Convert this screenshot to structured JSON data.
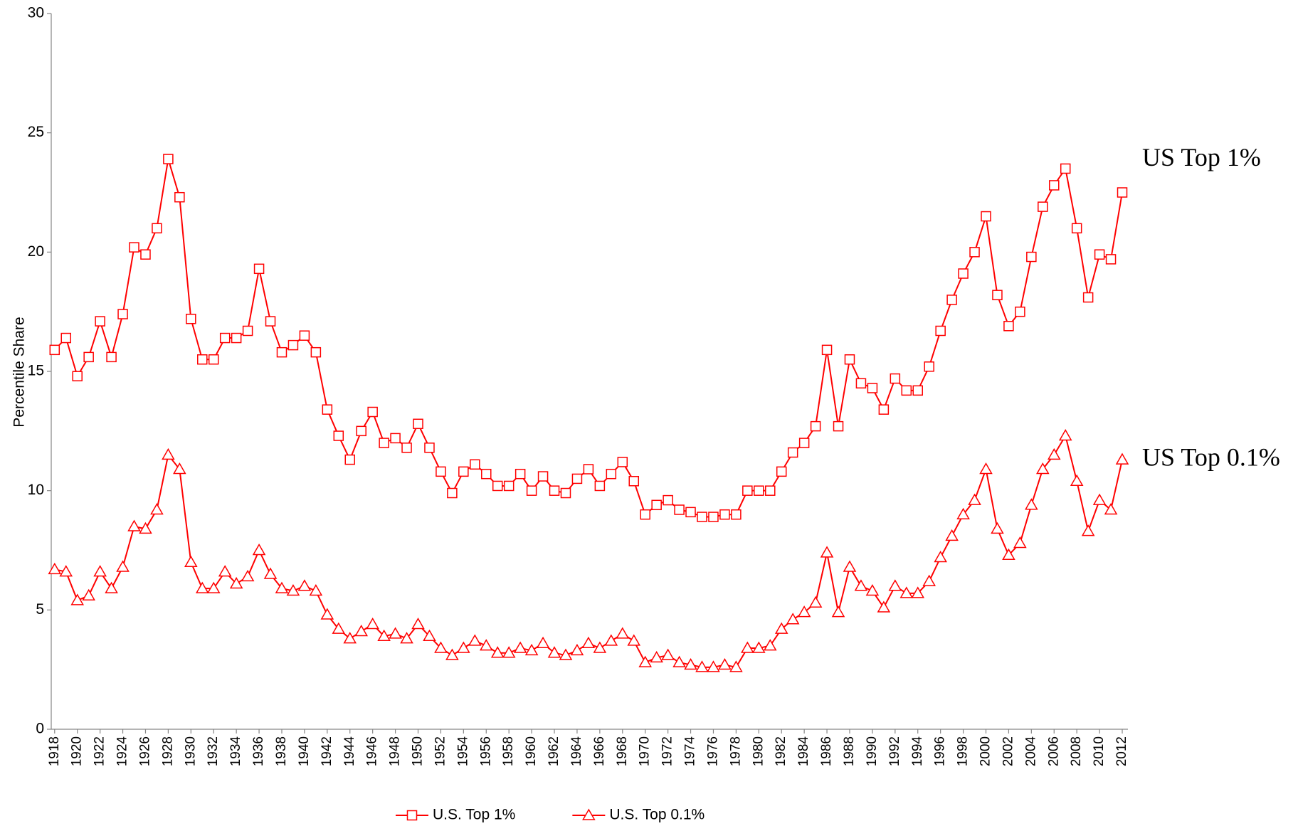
{
  "chart_data": {
    "type": "line",
    "ylabel": "Percentile Share",
    "x": [
      1918,
      1919,
      1920,
      1921,
      1922,
      1923,
      1924,
      1925,
      1926,
      1927,
      1928,
      1929,
      1930,
      1931,
      1932,
      1933,
      1934,
      1935,
      1936,
      1937,
      1938,
      1939,
      1940,
      1941,
      1942,
      1943,
      1944,
      1945,
      1946,
      1947,
      1948,
      1949,
      1950,
      1951,
      1952,
      1953,
      1954,
      1955,
      1956,
      1957,
      1958,
      1959,
      1960,
      1961,
      1962,
      1963,
      1964,
      1965,
      1966,
      1967,
      1968,
      1969,
      1970,
      1971,
      1972,
      1973,
      1974,
      1975,
      1976,
      1977,
      1978,
      1979,
      1980,
      1981,
      1982,
      1983,
      1984,
      1985,
      1986,
      1987,
      1988,
      1989,
      1990,
      1991,
      1992,
      1993,
      1994,
      1995,
      1996,
      1997,
      1998,
      1999,
      2000,
      2001,
      2002,
      2003,
      2004,
      2005,
      2006,
      2007,
      2008,
      2009,
      2010,
      2011,
      2012
    ],
    "series": [
      {
        "name": "U.S. Top 1%",
        "color": "#ff0000",
        "marker": "square",
        "values": [
          15.9,
          16.4,
          14.8,
          15.6,
          17.1,
          15.6,
          17.4,
          20.2,
          19.9,
          21.0,
          23.9,
          22.3,
          17.2,
          15.5,
          15.5,
          16.4,
          16.4,
          16.7,
          19.3,
          17.1,
          15.8,
          16.1,
          16.5,
          15.8,
          13.4,
          12.3,
          11.3,
          12.5,
          13.3,
          12.0,
          12.2,
          11.8,
          12.8,
          11.8,
          10.8,
          9.9,
          10.8,
          11.1,
          10.7,
          10.2,
          10.2,
          10.7,
          10.0,
          10.6,
          10.0,
          9.9,
          10.5,
          10.9,
          10.2,
          10.7,
          11.2,
          10.4,
          9.0,
          9.4,
          9.6,
          9.2,
          9.1,
          8.9,
          8.9,
          9.0,
          9.0,
          10.0,
          10.0,
          10.0,
          10.8,
          11.6,
          12.0,
          12.7,
          15.9,
          12.7,
          15.5,
          14.5,
          14.3,
          13.4,
          14.7,
          14.2,
          14.2,
          15.2,
          16.7,
          18.0,
          19.1,
          20.0,
          21.5,
          18.2,
          16.9,
          17.5,
          19.8,
          21.9,
          22.8,
          23.5,
          21.0,
          18.1,
          19.9,
          19.7,
          22.5
        ]
      },
      {
        "name": "U.S. Top 0.1%",
        "color": "#ff0000",
        "marker": "triangle",
        "values": [
          6.7,
          6.6,
          5.4,
          5.6,
          6.6,
          5.9,
          6.8,
          8.5,
          8.4,
          9.2,
          11.5,
          10.9,
          7.0,
          5.9,
          5.9,
          6.6,
          6.1,
          6.4,
          7.5,
          6.5,
          5.9,
          5.8,
          6.0,
          5.8,
          4.8,
          4.2,
          3.8,
          4.1,
          4.4,
          3.9,
          4.0,
          3.8,
          4.4,
          3.9,
          3.4,
          3.1,
          3.4,
          3.7,
          3.5,
          3.2,
          3.2,
          3.4,
          3.3,
          3.6,
          3.2,
          3.1,
          3.3,
          3.6,
          3.4,
          3.7,
          4.0,
          3.7,
          2.8,
          3.0,
          3.1,
          2.8,
          2.7,
          2.6,
          2.6,
          2.7,
          2.6,
          3.4,
          3.4,
          3.5,
          4.2,
          4.6,
          4.9,
          5.3,
          7.4,
          4.9,
          6.8,
          6.0,
          5.8,
          5.1,
          6.0,
          5.7,
          5.7,
          6.2,
          7.2,
          8.1,
          9.0,
          9.6,
          10.9,
          8.4,
          7.3,
          7.8,
          9.4,
          10.9,
          11.5,
          12.3,
          10.4,
          8.3,
          9.6,
          9.2,
          11.3
        ]
      }
    ],
    "annotations": [
      {
        "text": "US Top 1%",
        "series": 0
      },
      {
        "text": "US Top 0.1%",
        "series": 1
      }
    ],
    "xlim": [
      1917.7,
      2012.5
    ],
    "xticks": [
      1918,
      1920,
      1922,
      1924,
      1926,
      1928,
      1930,
      1932,
      1934,
      1936,
      1938,
      1940,
      1942,
      1944,
      1946,
      1948,
      1950,
      1952,
      1954,
      1956,
      1958,
      1960,
      1962,
      1964,
      1966,
      1968,
      1970,
      1972,
      1974,
      1976,
      1978,
      1980,
      1982,
      1984,
      1986,
      1988,
      1990,
      1992,
      1994,
      1996,
      1998,
      2000,
      2002,
      2004,
      2006,
      2008,
      2010,
      2012
    ],
    "ylim": [
      0,
      30
    ],
    "yticks": [
      0,
      5,
      10,
      15,
      20,
      25,
      30
    ],
    "legend": "bottom",
    "grid": false
  }
}
